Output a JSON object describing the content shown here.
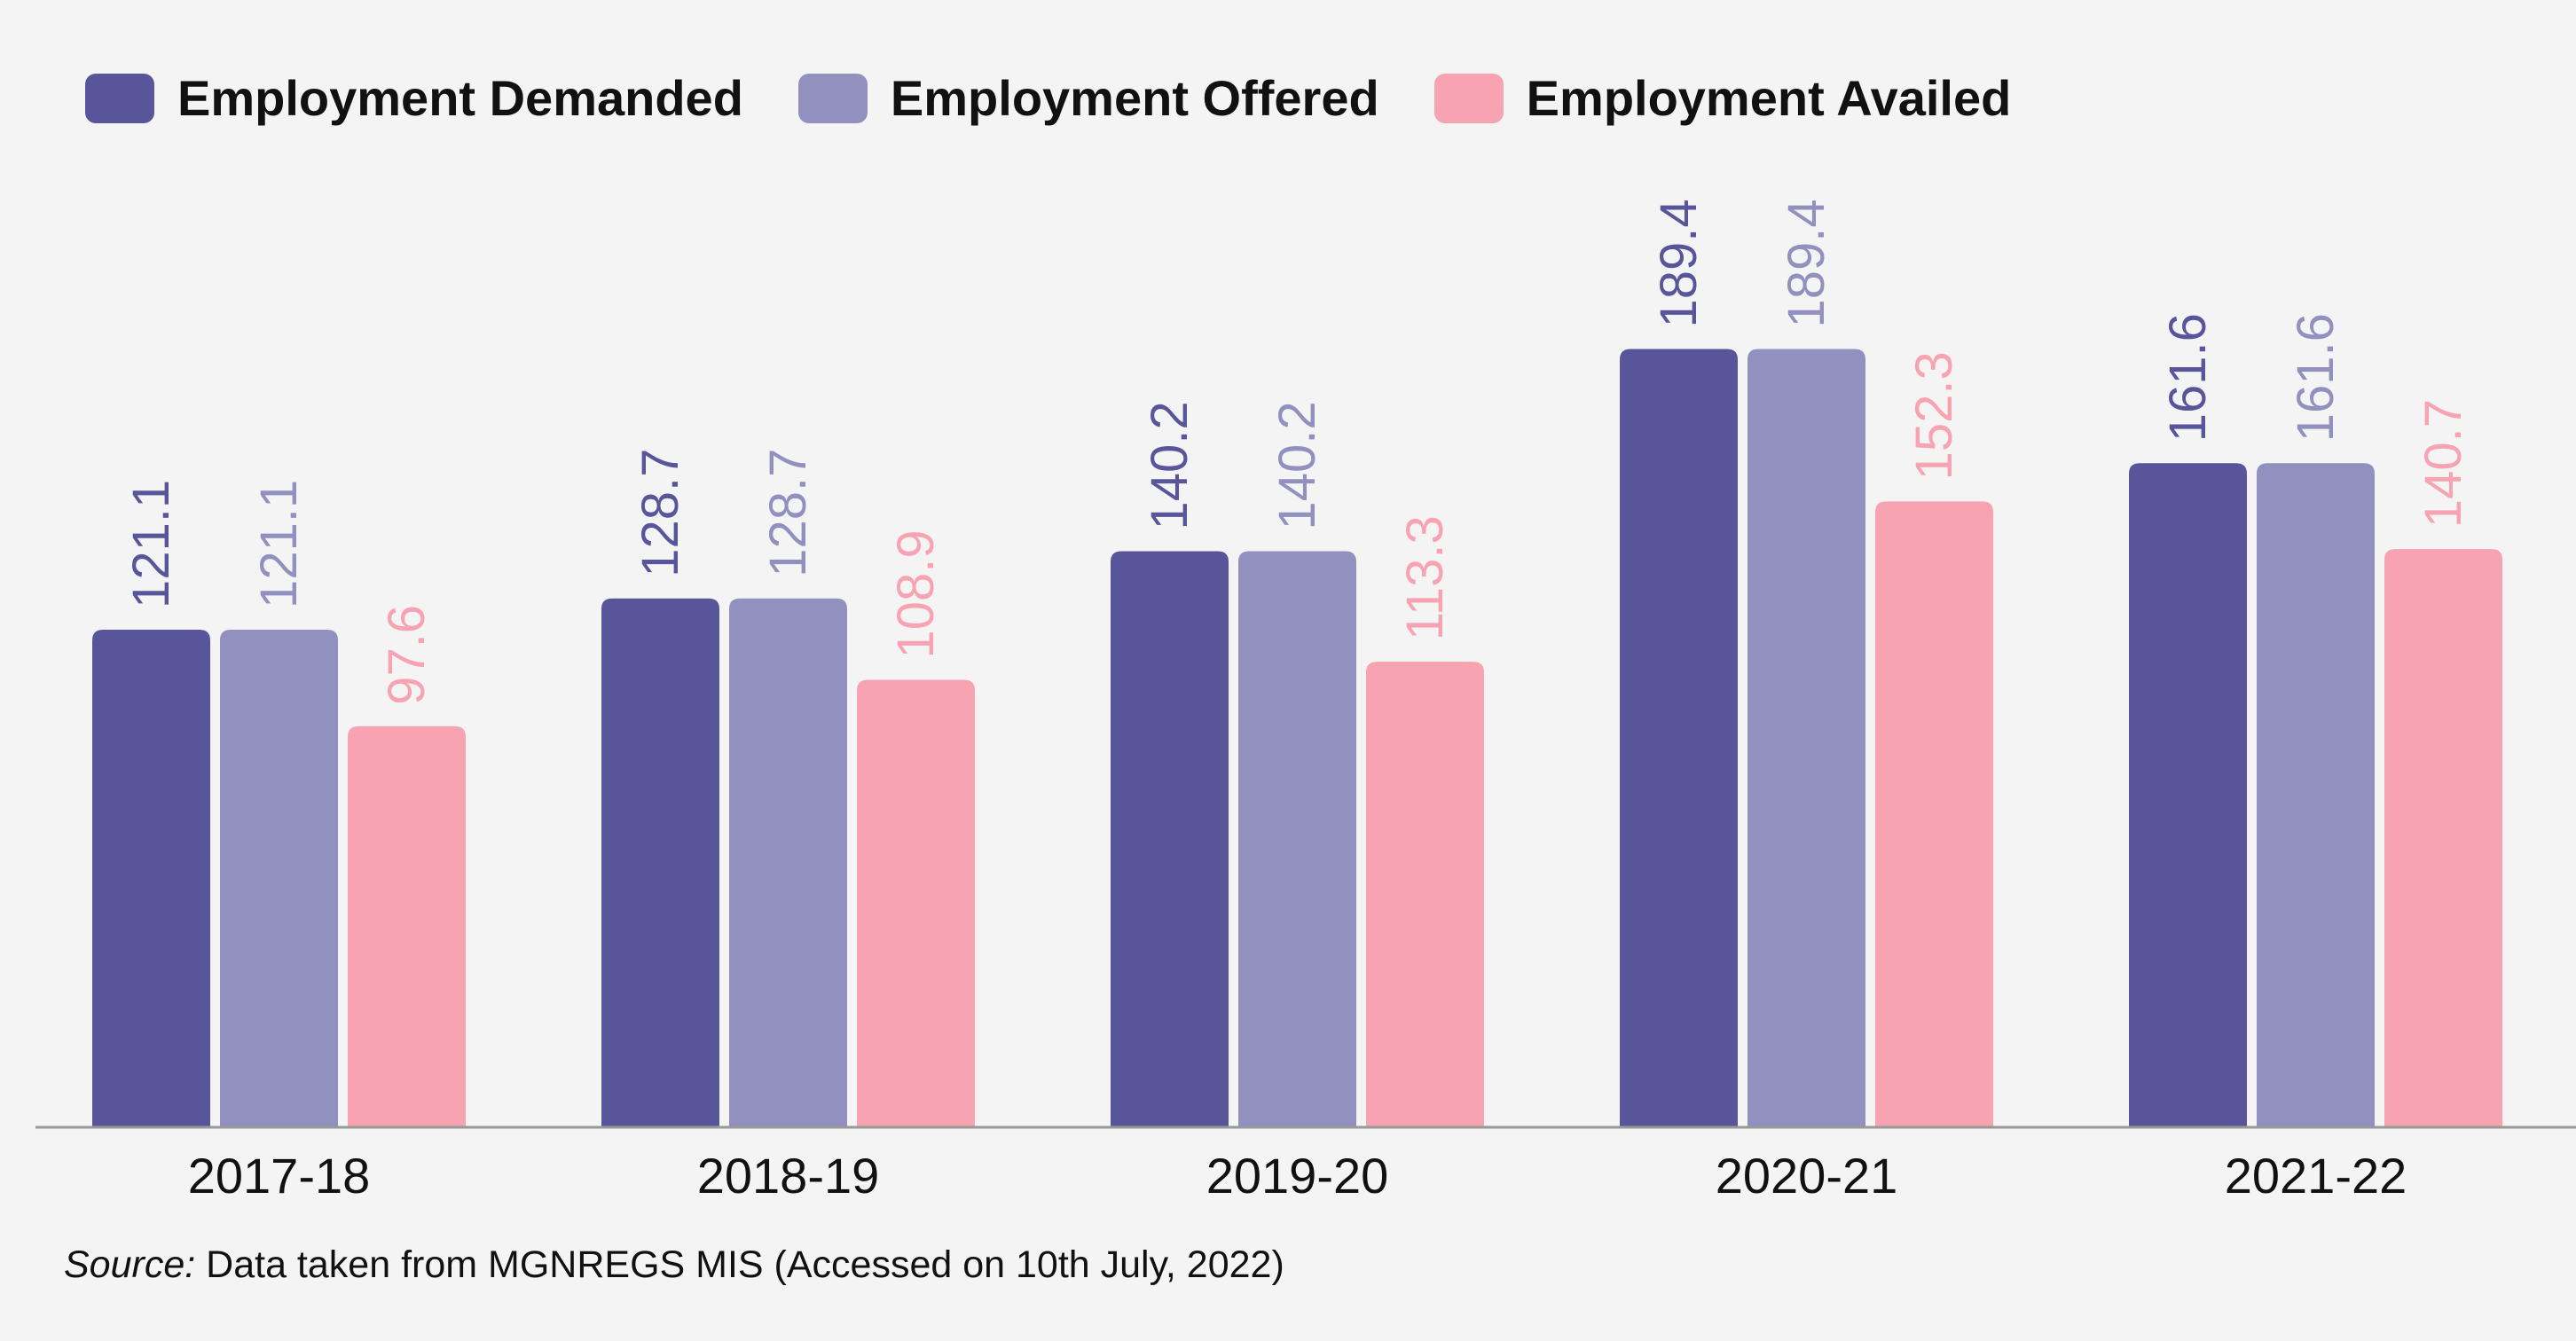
{
  "chart_data": {
    "type": "bar",
    "categories": [
      "2017-18",
      "2018-19",
      "2019-20",
      "2020-21",
      "2021-22"
    ],
    "series": [
      {
        "name": "Employment Demanded",
        "color": "#58559b",
        "values": [
          121.1,
          128.7,
          140.2,
          189.4,
          161.6
        ]
      },
      {
        "name": "Employment Offered",
        "color": "#9290bf",
        "values": [
          121.1,
          128.7,
          140.2,
          189.4,
          161.6
        ]
      },
      {
        "name": "Employment Availed",
        "color": "#f7a3b2",
        "values": [
          97.6,
          108.9,
          113.3,
          152.3,
          140.7
        ]
      }
    ],
    "ylim": [
      0,
      200
    ],
    "grid": false,
    "legend_position": "top-left",
    "value_labels": "rotated-above-bars"
  },
  "source": {
    "prefix": "Source:",
    "text": " Data taken from MGNREGS MIS (Accessed on 10th July, 2022)"
  }
}
